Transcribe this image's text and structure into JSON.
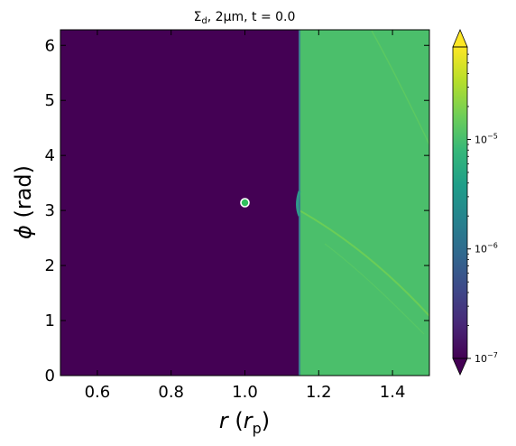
{
  "chart_data": {
    "type": "heatmap",
    "title": "Σ_d, 2μm, t = 0.0",
    "title_parts": {
      "sigma": "Σ",
      "sub": "d",
      "rest": ",  2μm,  t = 0.0"
    },
    "xlabel": {
      "symbol": "r",
      "open": " (",
      "unit": "r",
      "unit_sub": "p",
      "close": ")"
    },
    "ylabel": {
      "symbol": "ϕ",
      "unit": " (rad)"
    },
    "xlim": [
      0.5,
      1.5
    ],
    "ylim": [
      0,
      6.283
    ],
    "xticks": [
      {
        "value": 0.6,
        "label": "0.6"
      },
      {
        "value": 0.8,
        "label": "0.8"
      },
      {
        "value": 1.0,
        "label": "1.0"
      },
      {
        "value": 1.2,
        "label": "1.2"
      },
      {
        "value": 1.4,
        "label": "1.4"
      }
    ],
    "yticks": [
      {
        "value": 0,
        "label": "0"
      },
      {
        "value": 1,
        "label": "1"
      },
      {
        "value": 2,
        "label": "2"
      },
      {
        "value": 3,
        "label": "3"
      },
      {
        "value": 4,
        "label": "4"
      },
      {
        "value": 5,
        "label": "5"
      },
      {
        "value": 6,
        "label": "6"
      }
    ],
    "regions": [
      {
        "name": "inner-region",
        "x0": 0.5,
        "x1": 1.148,
        "value": 1e-07,
        "color": "#440154"
      },
      {
        "name": "outer-region",
        "x0": 1.148,
        "x1": 1.5,
        "value": 1.4e-05,
        "color": "#4bbf6b"
      }
    ],
    "edge_color": "#3c7f8f",
    "planet": {
      "r": 1.0,
      "phi": 3.14159,
      "fill": "#31c15e",
      "stroke": "#ffffff"
    },
    "colorbar": {
      "scale": "log",
      "range": [
        1e-07,
        7e-05
      ],
      "extend": "both",
      "colormap": "viridis",
      "ticks": [
        {
          "value": 1e-07,
          "base": "10",
          "exp": "−7"
        },
        {
          "value": 1e-06,
          "base": "10",
          "exp": "−6"
        },
        {
          "value": 1e-05,
          "base": "10",
          "exp": "−5"
        }
      ],
      "stops": [
        "#440154",
        "#482878",
        "#3e4989",
        "#31688e",
        "#26828e",
        "#1f9e89",
        "#35b779",
        "#6ece58",
        "#b5de2b",
        "#fde725"
      ]
    }
  }
}
